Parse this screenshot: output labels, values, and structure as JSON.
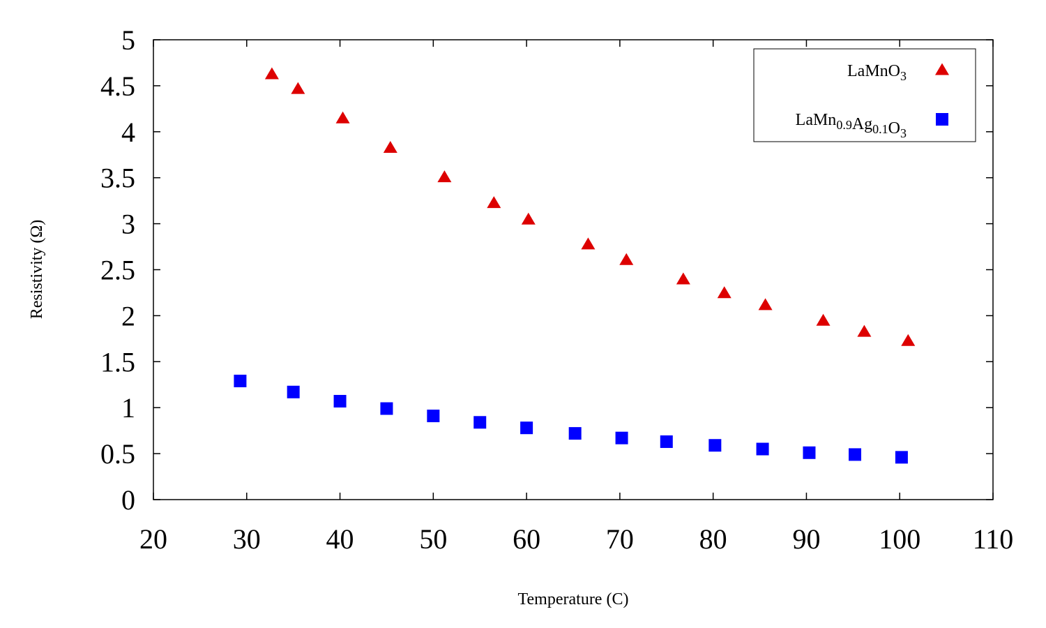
{
  "chart_data": {
    "type": "scatter",
    "xlabel": "Temperature (C)",
    "ylabel": "Resistivity (Ω)",
    "xlim": [
      20,
      110
    ],
    "ylim": [
      0,
      5
    ],
    "xticks": [
      20,
      30,
      40,
      50,
      60,
      70,
      80,
      90,
      100,
      110
    ],
    "yticks": [
      0,
      0.5,
      1,
      1.5,
      2,
      2.5,
      3,
      3.5,
      4,
      4.5,
      5
    ],
    "grid": false,
    "legend_position": "top-right",
    "series": [
      {
        "name": "LaMnO3",
        "label_parts": [
          {
            "t": "LaMn",
            "sub": false
          },
          {
            "t": "O",
            "sub": false
          },
          {
            "t": "3",
            "sub": true
          }
        ],
        "marker": "triangle",
        "color": "#dd0000",
        "x": [
          32.7,
          35.5,
          40.3,
          45.4,
          51.2,
          56.5,
          60.2,
          66.6,
          70.7,
          76.8,
          81.2,
          85.6,
          91.8,
          96.2,
          100.9
        ],
        "y": [
          4.62,
          4.46,
          4.14,
          3.82,
          3.5,
          3.22,
          3.04,
          2.77,
          2.6,
          2.39,
          2.24,
          2.11,
          1.94,
          1.82,
          1.72
        ]
      },
      {
        "name": "LaMn0.9Ag0.1O3",
        "label_parts": [
          {
            "t": "LaMn",
            "sub": false
          },
          {
            "t": "0.9",
            "sub": true
          },
          {
            "t": "Ag",
            "sub": false
          },
          {
            "t": "0.1",
            "sub": true
          },
          {
            "t": "O",
            "sub": false
          },
          {
            "t": "3",
            "sub": true
          }
        ],
        "marker": "square",
        "color": "#0000ff",
        "x": [
          29.3,
          35.0,
          40.0,
          45.0,
          50.0,
          55.0,
          60.0,
          65.2,
          70.2,
          75.0,
          80.2,
          85.3,
          90.3,
          95.2,
          100.2
        ],
        "y": [
          1.29,
          1.17,
          1.07,
          0.99,
          0.91,
          0.84,
          0.78,
          0.72,
          0.67,
          0.63,
          0.59,
          0.55,
          0.51,
          0.49,
          0.46
        ]
      }
    ]
  }
}
